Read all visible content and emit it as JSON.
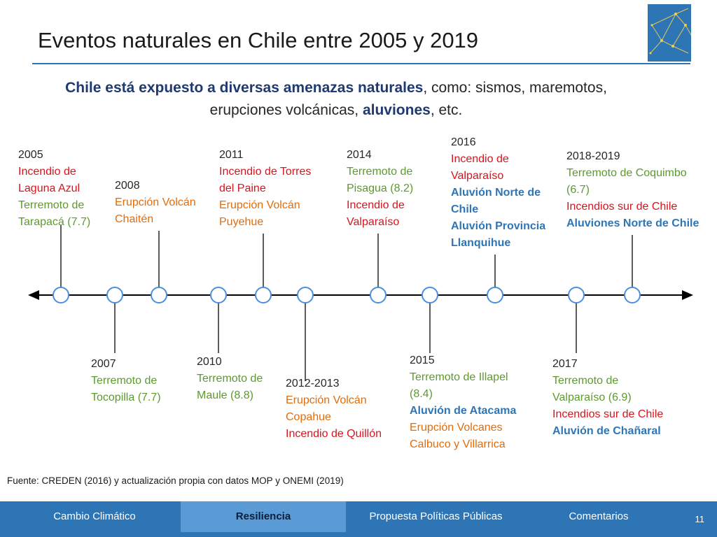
{
  "header": {
    "title": "Eventos naturales en Chile entre 2005 y 2019",
    "logo_icon": "network-logo-icon"
  },
  "subtitle": {
    "bold1": "Chile está expuesto a diversas amenazas naturales",
    "text1": ", como: sismos, maremotos,",
    "text2": "erupciones volcánicas, ",
    "bold2": "aluviones",
    "text3": ", etc."
  },
  "colors": {
    "accent": "#2e75b6",
    "red": "#d8141d",
    "green": "#5c9a2e",
    "orange": "#e36c0a",
    "blue": "#2e75b6",
    "nav_active": "#5b9bd5"
  },
  "events_top": [
    {
      "year": "2005",
      "items": [
        {
          "text": "Incendio de",
          "color": "red"
        },
        {
          "text": "Laguna Azul",
          "color": "red"
        },
        {
          "text": "Terremoto de",
          "color": "green"
        },
        {
          "text": "Tarapacá (7.7)",
          "color": "green"
        }
      ]
    },
    {
      "year": "2008",
      "items": [
        {
          "text": "Erupción Volcán",
          "color": "orange"
        },
        {
          "text": "Chaitén",
          "color": "orange"
        }
      ]
    },
    {
      "year": "2011",
      "items": [
        {
          "text": "Incendio de Torres",
          "color": "red"
        },
        {
          "text": "del Paine",
          "color": "red"
        },
        {
          "text": "Erupción Volcán",
          "color": "orange"
        },
        {
          "text": "Puyehue",
          "color": "orange"
        }
      ]
    },
    {
      "year": "2014",
      "items": [
        {
          "text": "Terremoto de",
          "color": "green"
        },
        {
          "text": "Pisagua (8.2)",
          "color": "green"
        },
        {
          "text": "Incendio de",
          "color": "red"
        },
        {
          "text": "Valparaíso",
          "color": "red"
        }
      ]
    },
    {
      "year": "2016",
      "items": [
        {
          "text": "Incendio de",
          "color": "red"
        },
        {
          "text": "Valparaíso",
          "color": "red"
        },
        {
          "text": "Aluvión Norte de",
          "color": "blue"
        },
        {
          "text": "Chile",
          "color": "blue"
        },
        {
          "text": "Aluvión Provincia",
          "color": "blue"
        },
        {
          "text": "Llanquihue",
          "color": "blue"
        }
      ]
    },
    {
      "year": "2018-2019",
      "items": [
        {
          "text": "Terremoto de Coquimbo",
          "color": "green"
        },
        {
          "text": "(6.7)",
          "color": "green"
        },
        {
          "text": "Incendios sur de Chile",
          "color": "red"
        },
        {
          "text": "Aluviones Norte de Chile",
          "color": "blue"
        }
      ]
    }
  ],
  "events_bottom": [
    {
      "year": "2007",
      "items": [
        {
          "text": "Terremoto de",
          "color": "green"
        },
        {
          "text": "Tocopilla (7.7)",
          "color": "green"
        }
      ]
    },
    {
      "year": "2010",
      "items": [
        {
          "text": "Terremoto de",
          "color": "green"
        },
        {
          "text": "Maule (8.8)",
          "color": "green"
        }
      ]
    },
    {
      "year": "2012-2013",
      "items": [
        {
          "text": "Erupción Volcán",
          "color": "orange"
        },
        {
          "text": "Copahue",
          "color": "orange"
        },
        {
          "text": "Incendio de Quillón",
          "color": "red"
        }
      ]
    },
    {
      "year": "2015",
      "items": [
        {
          "text": "Terremoto de Illapel",
          "color": "green"
        },
        {
          "text": "(8.4)",
          "color": "green"
        },
        {
          "text": "Aluvión de Atacama",
          "color": "blue"
        },
        {
          "text": "Erupción Volcanes",
          "color": "orange"
        },
        {
          "text": "Calbuco y Villarrica",
          "color": "orange"
        }
      ]
    },
    {
      "year": "2017",
      "items": [
        {
          "text": "Terremoto de",
          "color": "green"
        },
        {
          "text": "Valparaíso (6.9)",
          "color": "green"
        },
        {
          "text": "Incendios sur de Chile",
          "color": "red"
        },
        {
          "text": "Aluvión de Chañaral",
          "color": "blue"
        }
      ]
    }
  ],
  "source": "Fuente: CREDEN (2016) y actualización propia con datos MOP y ONEMI (2019)",
  "nav": {
    "items": [
      "Cambio Climático",
      "Resiliencia",
      "Propuesta Políticas Públicas",
      "Comentarios"
    ],
    "active": "Resiliencia",
    "page_number": "11"
  }
}
